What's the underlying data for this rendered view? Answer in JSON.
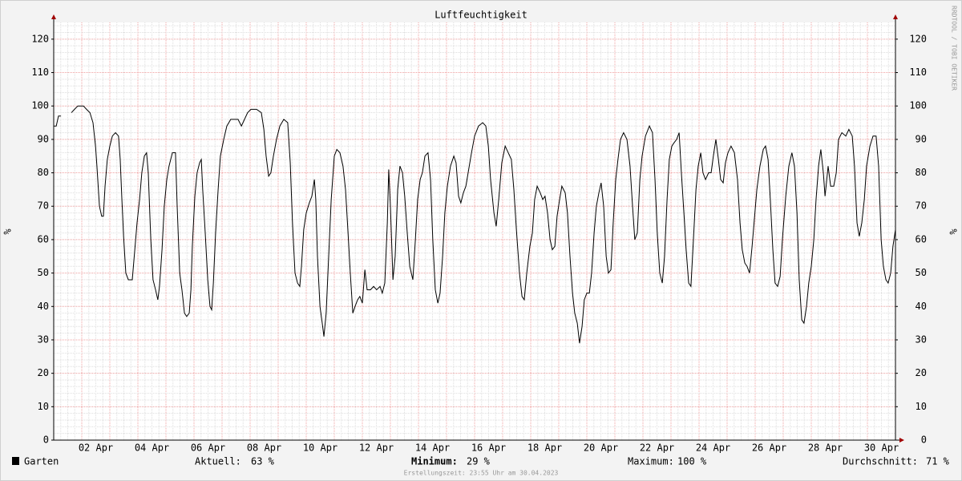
{
  "chart_data": {
    "type": "line",
    "title": "Luftfeuchtigkeit",
    "ylabel": "%",
    "watermark": "RRDTOOL / TOBI OETIKER",
    "footer": "Erstellungszeit: 23:55 Uhr am 30.04.2023",
    "stats": [
      {
        "label": "Aktuell:",
        "text": "63 %"
      },
      {
        "label": "Minimum:",
        "text": "29 %"
      },
      {
        "label": "Maximum:",
        "text": "100 %"
      },
      {
        "label": "Durchschnitt:",
        "text": "71 %"
      }
    ],
    "xlim": [
      0,
      30
    ],
    "ylim": [
      0,
      125
    ],
    "grid": true,
    "yticks": [
      0,
      10,
      20,
      30,
      40,
      50,
      60,
      70,
      80,
      90,
      100,
      110,
      120
    ],
    "xticks": [
      {
        "value": 1.5,
        "label": "02 Apr"
      },
      {
        "value": 3.5,
        "label": "04 Apr"
      },
      {
        "value": 5.5,
        "label": "06 Apr"
      },
      {
        "value": 7.5,
        "label": "08 Apr"
      },
      {
        "value": 9.5,
        "label": "10 Apr"
      },
      {
        "value": 11.5,
        "label": "12 Apr"
      },
      {
        "value": 13.5,
        "label": "14 Apr"
      },
      {
        "value": 15.5,
        "label": "16 Apr"
      },
      {
        "value": 17.5,
        "label": "18 Apr"
      },
      {
        "value": 19.5,
        "label": "20 Apr"
      },
      {
        "value": 21.5,
        "label": "22 Apr"
      },
      {
        "value": 23.5,
        "label": "24 Apr"
      },
      {
        "value": 25.5,
        "label": "26 Apr"
      },
      {
        "value": 27.5,
        "label": "28 Apr"
      },
      {
        "value": 29.5,
        "label": "30 Apr"
      }
    ],
    "x": [
      0.0,
      0.09,
      0.17,
      0.26,
      0.4,
      0.63,
      0.74,
      0.86,
      1.06,
      1.17,
      1.29,
      1.4,
      1.49,
      1.54,
      1.63,
      1.71,
      1.77,
      1.83,
      1.91,
      2.0,
      2.09,
      2.2,
      2.31,
      2.37,
      2.43,
      2.49,
      2.57,
      2.66,
      2.8,
      2.89,
      2.97,
      3.06,
      3.14,
      3.23,
      3.31,
      3.37,
      3.46,
      3.54,
      3.63,
      3.71,
      3.77,
      3.86,
      3.94,
      4.03,
      4.11,
      4.23,
      4.34,
      4.4,
      4.49,
      4.57,
      4.66,
      4.74,
      4.83,
      4.89,
      4.94,
      5.03,
      5.11,
      5.2,
      5.26,
      5.31,
      5.4,
      5.49,
      5.57,
      5.63,
      5.69,
      5.77,
      5.86,
      5.94,
      6.06,
      6.17,
      6.31,
      6.43,
      6.57,
      6.69,
      6.8,
      6.91,
      7.03,
      7.23,
      7.4,
      7.49,
      7.57,
      7.66,
      7.74,
      7.83,
      7.94,
      8.06,
      8.2,
      8.34,
      8.43,
      8.51,
      8.6,
      8.69,
      8.77,
      8.83,
      8.91,
      9.0,
      9.11,
      9.2,
      9.29,
      9.34,
      9.4,
      9.49,
      9.57,
      9.63,
      9.71,
      9.8,
      9.89,
      10.0,
      10.09,
      10.2,
      10.31,
      10.4,
      10.49,
      10.57,
      10.66,
      10.74,
      10.83,
      10.91,
      11.0,
      11.09,
      11.17,
      11.29,
      11.4,
      11.51,
      11.63,
      11.71,
      11.8,
      11.89,
      11.94,
      12.0,
      12.09,
      12.17,
      12.26,
      12.34,
      12.43,
      12.51,
      12.6,
      12.69,
      12.8,
      12.89,
      12.97,
      13.06,
      13.14,
      13.23,
      13.34,
      13.43,
      13.51,
      13.6,
      13.69,
      13.77,
      13.86,
      13.94,
      14.03,
      14.14,
      14.26,
      14.34,
      14.43,
      14.51,
      14.6,
      14.69,
      14.77,
      14.89,
      15.0,
      15.14,
      15.29,
      15.4,
      15.49,
      15.57,
      15.69,
      15.77,
      15.86,
      15.97,
      16.09,
      16.2,
      16.31,
      16.4,
      16.49,
      16.6,
      16.69,
      16.77,
      16.86,
      16.97,
      17.06,
      17.14,
      17.23,
      17.34,
      17.43,
      17.51,
      17.6,
      17.69,
      17.77,
      17.86,
      17.94,
      18.03,
      18.11,
      18.23,
      18.31,
      18.4,
      18.49,
      18.57,
      18.66,
      18.74,
      18.83,
      18.91,
      19.0,
      19.09,
      19.17,
      19.26,
      19.34,
      19.43,
      19.51,
      19.6,
      19.69,
      19.77,
      19.86,
      19.94,
      20.03,
      20.11,
      20.2,
      20.31,
      20.43,
      20.54,
      20.63,
      20.71,
      20.8,
      20.89,
      20.97,
      21.09,
      21.23,
      21.34,
      21.43,
      21.51,
      21.6,
      21.69,
      21.77,
      21.86,
      21.94,
      22.03,
      22.11,
      22.2,
      22.29,
      22.37,
      22.46,
      22.54,
      22.63,
      22.71,
      22.8,
      22.89,
      22.97,
      23.06,
      23.14,
      23.23,
      23.34,
      23.43,
      23.51,
      23.6,
      23.69,
      23.77,
      23.86,
      23.94,
      24.03,
      24.14,
      24.26,
      24.37,
      24.46,
      24.54,
      24.63,
      24.71,
      24.8,
      24.89,
      24.97,
      25.06,
      25.17,
      25.29,
      25.37,
      25.46,
      25.54,
      25.63,
      25.71,
      25.8,
      25.89,
      25.97,
      26.09,
      26.2,
      26.31,
      26.4,
      26.49,
      26.57,
      26.66,
      26.74,
      26.83,
      26.91,
      27.0,
      27.09,
      27.17,
      27.26,
      27.34,
      27.43,
      27.49,
      27.54,
      27.6,
      27.69,
      27.8,
      27.89,
      27.97,
      28.09,
      28.23,
      28.34,
      28.46,
      28.54,
      28.63,
      28.71,
      28.8,
      28.89,
      28.97,
      29.09,
      29.2,
      29.31,
      29.4,
      29.49,
      29.57,
      29.66,
      29.74,
      29.83,
      29.91,
      30.0
    ],
    "series": [
      {
        "name": "Garten",
        "color": "#000000",
        "values": [
          94,
          94,
          97,
          97,
          null,
          98,
          99,
          100,
          100,
          99,
          98,
          95,
          88,
          82,
          70,
          67,
          67,
          76,
          84,
          88,
          91,
          92,
          91,
          84,
          72,
          61,
          50,
          48,
          48,
          57,
          65,
          72,
          80,
          85,
          86,
          80,
          60,
          48,
          45,
          42,
          46,
          57,
          70,
          78,
          82,
          86,
          86,
          70,
          50,
          45,
          38,
          37,
          38,
          45,
          58,
          73,
          80,
          83,
          84,
          75,
          62,
          48,
          40,
          39,
          47,
          62,
          75,
          85,
          90,
          94,
          96,
          96,
          96,
          94,
          96,
          98,
          99,
          99,
          98,
          93,
          85,
          79,
          80,
          85,
          90,
          94,
          96,
          95,
          83,
          65,
          50,
          47,
          46,
          52,
          63,
          68,
          71,
          73,
          78,
          72,
          55,
          40,
          35,
          31,
          38,
          55,
          72,
          85,
          87,
          86,
          82,
          75,
          62,
          50,
          38,
          40,
          42,
          43,
          41,
          51,
          45,
          45,
          46,
          45,
          46,
          44,
          47,
          65,
          81,
          70,
          48,
          55,
          75,
          82,
          80,
          73,
          62,
          52,
          48,
          60,
          72,
          78,
          80,
          85,
          86,
          78,
          60,
          45,
          41,
          44,
          55,
          68,
          76,
          82,
          85,
          83,
          73,
          71,
          74,
          76,
          80,
          86,
          91,
          94,
          95,
          94,
          88,
          78,
          68,
          64,
          72,
          83,
          88,
          86,
          84,
          75,
          63,
          50,
          43,
          42,
          50,
          58,
          62,
          72,
          76,
          74,
          72,
          73,
          68,
          60,
          57,
          58,
          67,
          72,
          76,
          74,
          68,
          55,
          44,
          38,
          35,
          29,
          34,
          42,
          44,
          44,
          50,
          62,
          70,
          74,
          77,
          70,
          55,
          50,
          51,
          65,
          78,
          84,
          90,
          92,
          90,
          82,
          70,
          60,
          62,
          78,
          85,
          91,
          94,
          92,
          78,
          62,
          50,
          47,
          55,
          72,
          84,
          88,
          89,
          90,
          92,
          80,
          68,
          57,
          47,
          46,
          60,
          75,
          82,
          86,
          80,
          78,
          80,
          80,
          85,
          90,
          84,
          78,
          77,
          83,
          86,
          88,
          86,
          78,
          65,
          57,
          53,
          52,
          50,
          58,
          66,
          75,
          82,
          87,
          88,
          84,
          72,
          57,
          47,
          46,
          49,
          60,
          73,
          82,
          86,
          82,
          68,
          48,
          36,
          35,
          40,
          47,
          52,
          60,
          72,
          82,
          87,
          80,
          73,
          77,
          82,
          76,
          76,
          80,
          90,
          92,
          91,
          93,
          91,
          82,
          65,
          61,
          65,
          72,
          82,
          88,
          91,
          91,
          82,
          60,
          52,
          48,
          47,
          50,
          58,
          63
        ]
      }
    ]
  }
}
